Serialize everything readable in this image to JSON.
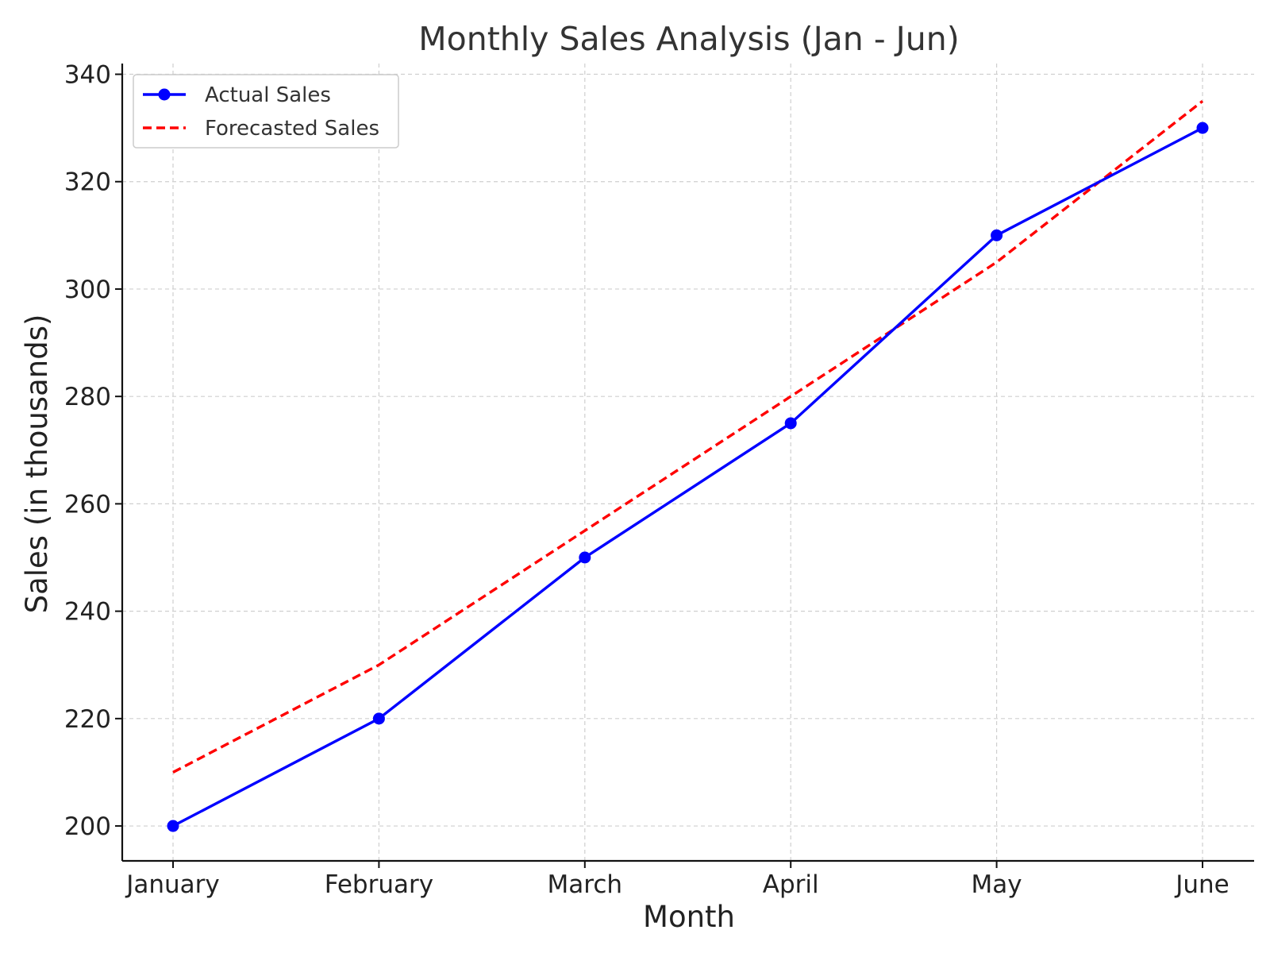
{
  "chart_data": {
    "type": "line",
    "title": "Monthly Sales Analysis (Jan - Jun)",
    "xlabel": "Month",
    "ylabel": "Sales (in thousands)",
    "categories": [
      "January",
      "February",
      "March",
      "April",
      "May",
      "June"
    ],
    "ylim": [
      193.5,
      342
    ],
    "yticks": [
      200,
      220,
      240,
      260,
      280,
      300,
      320,
      340
    ],
    "grid": true,
    "legend_position": "top-left",
    "series": [
      {
        "name": "Actual Sales",
        "values": [
          200,
          220,
          250,
          275,
          310,
          330
        ],
        "color": "#0000ff",
        "style": "solid",
        "marker": "circle"
      },
      {
        "name": "Forecasted Sales",
        "values": [
          210,
          230,
          255,
          280,
          305,
          335
        ],
        "color": "#ff0000",
        "style": "dashed",
        "marker": "none"
      }
    ]
  }
}
